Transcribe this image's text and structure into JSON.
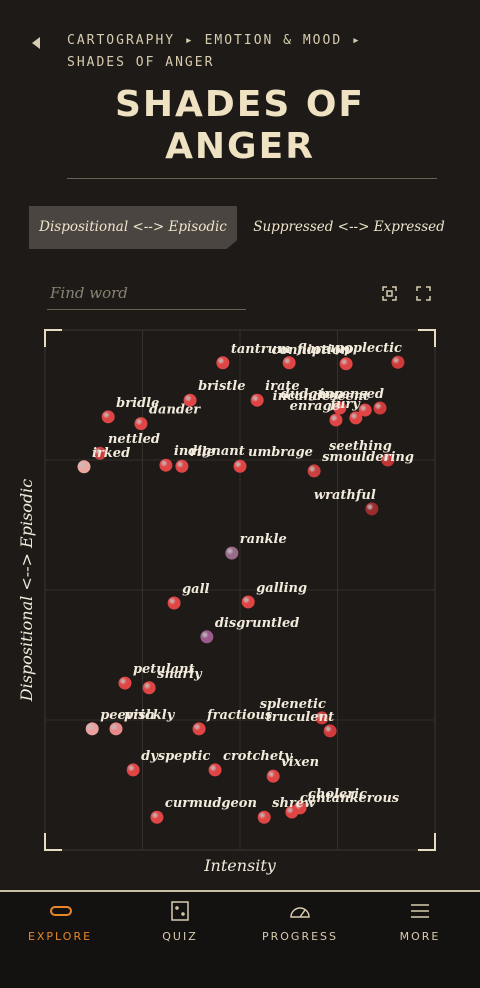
{
  "breadcrumb": "CARTOGRAPHY ▸ EMOTION & MOOD ▸ SHADES OF ANGER",
  "title": "SHADES OF ANGER",
  "tabs": [
    "Dispositional <--> Episodic",
    "Suppressed <--> Expressed"
  ],
  "search_placeholder": "Find word",
  "chart_data": {
    "type": "scatter",
    "xlabel": "Intensity",
    "ylabel": "Dispositional <--> Episodic",
    "xlim": [
      0,
      100
    ],
    "ylim": [
      0,
      100
    ],
    "grid": true,
    "points": [
      {
        "name": "tantrum",
        "x": 45.6,
        "y": 93.7,
        "color": "#e04545"
      },
      {
        "name": "flare up",
        "x": 62.6,
        "y": 93.7,
        "color": "#e04545"
      },
      {
        "name": "apoplectic",
        "x": 90.5,
        "y": 93.8,
        "color": "#d03a3a"
      },
      {
        "name": "conniption",
        "x": 77.2,
        "y": 93.5,
        "color": "#e04545"
      },
      {
        "name": "dudgeon",
        "x": 75.6,
        "y": 85.0,
        "color": "#e04545"
      },
      {
        "name": "incensed",
        "x": 85.9,
        "y": 85.0,
        "color": "#d03a3a"
      },
      {
        "name": "incandescent",
        "x": 82.1,
        "y": 84.6,
        "color": "#e04545"
      },
      {
        "name": "enrage",
        "x": 74.6,
        "y": 82.7,
        "color": "#e04545"
      },
      {
        "name": "fury",
        "x": 79.7,
        "y": 83.1,
        "color": "#e04545"
      },
      {
        "name": "bristle",
        "x": 37.2,
        "y": 86.5,
        "color": "#e04545"
      },
      {
        "name": "irate",
        "x": 54.4,
        "y": 86.5,
        "color": "#e04545"
      },
      {
        "name": "bridle",
        "x": 16.2,
        "y": 83.3,
        "color": "#e04545"
      },
      {
        "name": "dander",
        "x": 24.6,
        "y": 82.0,
        "color": "#e04545"
      },
      {
        "name": "nettled",
        "x": 14.1,
        "y": 76.3,
        "color": "#c84040"
      },
      {
        "name": "irked",
        "x": 10.0,
        "y": 73.7,
        "color": "#eaa8a0"
      },
      {
        "name": "indignant",
        "x": 31.0,
        "y": 74.0,
        "color": "#e04545"
      },
      {
        "name": "rile",
        "x": 35.1,
        "y": 73.8,
        "color": "#e04545"
      },
      {
        "name": "umbrage",
        "x": 50.0,
        "y": 73.8,
        "color": "#e04545"
      },
      {
        "name": "seething",
        "x": 87.9,
        "y": 75.0,
        "color": "#c03535"
      },
      {
        "name": "smouldering",
        "x": 69.0,
        "y": 72.9,
        "color": "#c84040"
      },
      {
        "name": "wrathful",
        "x": 83.8,
        "y": 65.6,
        "color": "#9a2c2c"
      },
      {
        "name": "rankle",
        "x": 47.9,
        "y": 57.1,
        "color": "#9a6a8a"
      },
      {
        "name": "gall",
        "x": 33.1,
        "y": 47.5,
        "color": "#e04545"
      },
      {
        "name": "galling",
        "x": 52.1,
        "y": 47.7,
        "color": "#e04545"
      },
      {
        "name": "disgruntled",
        "x": 41.5,
        "y": 41.0,
        "color": "#9a5a8a"
      },
      {
        "name": "petulant",
        "x": 20.5,
        "y": 32.1,
        "color": "#e04545"
      },
      {
        "name": "snarly",
        "x": 26.7,
        "y": 31.2,
        "color": "#e04545"
      },
      {
        "name": "peevish",
        "x": 12.1,
        "y": 23.3,
        "color": "#eaa0a0"
      },
      {
        "name": "prickly",
        "x": 18.2,
        "y": 23.3,
        "color": "#e88a8a"
      },
      {
        "name": "fractious",
        "x": 39.5,
        "y": 23.3,
        "color": "#e04545"
      },
      {
        "name": "splenetic",
        "x": 71.0,
        "y": 25.4,
        "color": "#d03a3a"
      },
      {
        "name": "truculent",
        "x": 73.1,
        "y": 22.9,
        "color": "#d03a3a"
      },
      {
        "name": "dyspeptic",
        "x": 22.6,
        "y": 15.4,
        "color": "#e04545"
      },
      {
        "name": "crotchety",
        "x": 43.6,
        "y": 15.4,
        "color": "#e04545"
      },
      {
        "name": "vixen",
        "x": 58.5,
        "y": 14.2,
        "color": "#e04545"
      },
      {
        "name": "choleric",
        "x": 65.4,
        "y": 8.1,
        "color": "#e04545"
      },
      {
        "name": "cantankerous",
        "x": 63.3,
        "y": 7.3,
        "color": "#e04545"
      },
      {
        "name": "shrew",
        "x": 56.2,
        "y": 6.3,
        "color": "#e04545"
      },
      {
        "name": "curmudgeon",
        "x": 28.7,
        "y": 6.3,
        "color": "#e04545"
      }
    ]
  },
  "nav": [
    "EXPLORE",
    "QUIZ",
    "PROGRESS",
    "MORE"
  ]
}
